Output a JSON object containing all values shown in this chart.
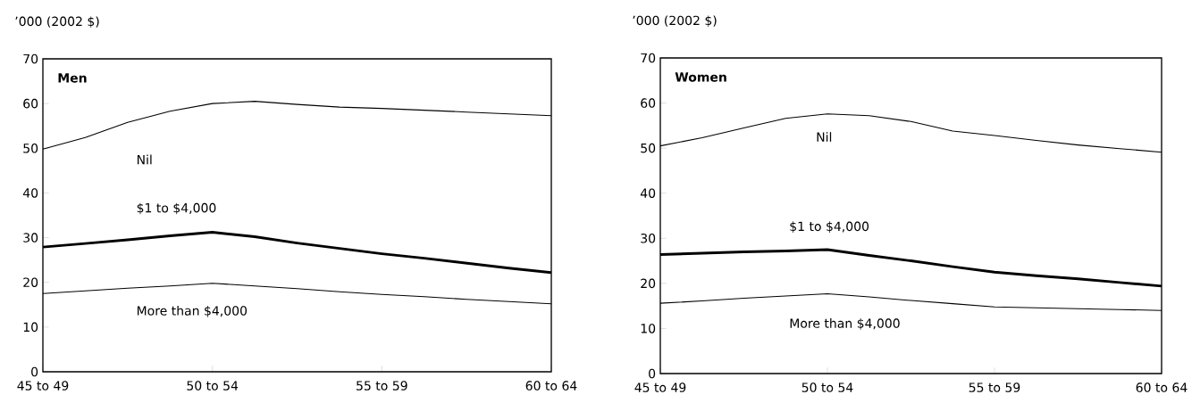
{
  "chart_data": [
    {
      "type": "line",
      "title": "Men",
      "ylabel": "’000 (2002 $)",
      "categories": [
        "45 to 49",
        null,
        null,
        null,
        "50 to 54",
        null,
        null,
        null,
        "55 to 59",
        null,
        null,
        null,
        "60 to 64"
      ],
      "ylim": [
        0,
        70
      ],
      "yticks": [
        0,
        10,
        20,
        30,
        40,
        50,
        60,
        70
      ],
      "series": [
        {
          "name": "Nil",
          "color": "#000000",
          "values": [
            49.8,
            52.4,
            55.8,
            58.3,
            60,
            60.5,
            59.8,
            59.2,
            58.9,
            58.5,
            58.1,
            57.7,
            57.3
          ]
        },
        {
          "name": "$1 to $4,000",
          "color": "#000000",
          "values": [
            27.9,
            28.7,
            29.5,
            30.4,
            31.2,
            30.2,
            28.8,
            27.6,
            26.4,
            25.4,
            24.3,
            23.2,
            22.2
          ]
        },
        {
          "name": "More than $4,000",
          "color": "#000000",
          "values": [
            17.5,
            18.1,
            18.7,
            19.2,
            19.8,
            19.2,
            18.6,
            17.9,
            17.3,
            16.8,
            16.2,
            15.7,
            15.2
          ]
        }
      ]
    },
    {
      "type": "line",
      "title": "Women",
      "ylabel": "’000 (2002 $)",
      "categories": [
        "45 to 49",
        null,
        null,
        null,
        "50 to 54",
        null,
        null,
        null,
        "55 to 59",
        null,
        null,
        null,
        "60 to 64"
      ],
      "ylim": [
        0,
        70
      ],
      "yticks": [
        0,
        10,
        20,
        30,
        40,
        50,
        60,
        70
      ],
      "series": [
        {
          "name": "Nil",
          "color": "#000000",
          "values": [
            50.5,
            52.3,
            54.5,
            56.6,
            57.6,
            57.2,
            55.9,
            53.8,
            52.8,
            51.7,
            50.7,
            49.9,
            49.1
          ]
        },
        {
          "name": "$1 to $4,000",
          "color": "#000000",
          "values": [
            26.4,
            26.7,
            27.0,
            27.2,
            27.5,
            26.2,
            25.0,
            23.7,
            22.5,
            21.7,
            21.0,
            20.2,
            19.4
          ]
        },
        {
          "name": "More than $4,000",
          "color": "#000000",
          "values": [
            15.6,
            16.1,
            16.7,
            17.2,
            17.7,
            17.0,
            16.2,
            15.5,
            14.8,
            14.6,
            14.4,
            14.2,
            14.0
          ]
        }
      ]
    }
  ]
}
